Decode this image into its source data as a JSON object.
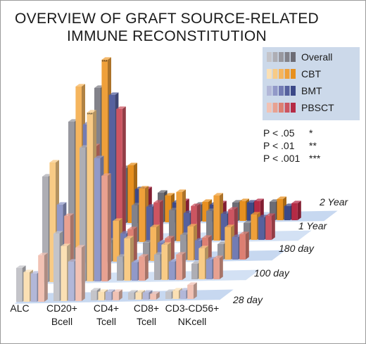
{
  "title_line1": "OVERVIEW OF GRAFT SOURCE-RELATED",
  "title_line2": "IMMUNE RECONSTITUTION",
  "legend": {
    "items": [
      {
        "label": "Overall",
        "colors": [
          "#c4c4c9",
          "#aeaeb4",
          "#98989f",
          "#82828a",
          "#6c6c75"
        ]
      },
      {
        "label": "CBT",
        "colors": [
          "#fbe0b4",
          "#f8cb86",
          "#f5b55e",
          "#efa03a",
          "#e7901f"
        ]
      },
      {
        "label": "BMT",
        "colors": [
          "#b2b7d8",
          "#9199c8",
          "#737cb4",
          "#56619e",
          "#3c4988"
        ]
      },
      {
        "label": "PBSCT",
        "colors": [
          "#f2c2b4",
          "#e8a191",
          "#dd7f72",
          "#cc5561",
          "#b52a45"
        ]
      }
    ]
  },
  "pvalues": [
    {
      "label": "P < .05",
      "stars": "*"
    },
    {
      "label": "P < .01",
      "stars": "**"
    },
    {
      "label": "P < .001",
      "stars": "***"
    }
  ],
  "chart_data": {
    "type": "bar",
    "title": "OVERVIEW OF GRAFT SOURCE-RELATED IMMUNE RECONSTITUTION",
    "categories": [
      "ALC",
      "CD20+ Bcell",
      "CD4+ Tcell",
      "CD8+ Tcell",
      "CD3-CD56+ NKcell"
    ],
    "category_lines": [
      [
        "ALC"
      ],
      [
        "CD20+",
        "Bcell"
      ],
      [
        "CD4+",
        "Tcell"
      ],
      [
        "CD8+",
        "Tcell"
      ],
      [
        "CD3-CD56+",
        "NKcell"
      ]
    ],
    "timepoints": [
      "28 day",
      "100 day",
      "180 day",
      "1 Year",
      "2 Year"
    ],
    "series_names": [
      "Overall",
      "CBT",
      "BMT",
      "PBSCT"
    ],
    "units": "relative bar height (no value axis shown)",
    "values": [
      [
        [
          48,
          42,
          40,
          66
        ],
        [
          96,
          78,
          56,
          76
        ],
        [
          14,
          12,
          12,
          12
        ],
        [
          10,
          10,
          10,
          8
        ],
        [
          10,
          12,
          12,
          20
        ]
      ],
      [
        [
          150,
          170,
          110,
          94
        ],
        [
          190,
          240,
          175,
          150
        ],
        [
          34,
          60,
          26,
          34
        ],
        [
          36,
          50,
          26,
          36
        ],
        [
          22,
          44,
          28,
          30
        ]
      ],
      [
        [
          200,
          250,
          196,
          165
        ],
        [
          30,
          58,
          40,
          46
        ],
        [
          26,
          48,
          26,
          32
        ],
        [
          36,
          48,
          28,
          32
        ],
        [
          22,
          46,
          32,
          36
        ]
      ],
      [
        [
          220,
          260,
          210,
          190
        ],
        [
          52,
          76,
          50,
          56
        ],
        [
          44,
          70,
          40,
          50
        ],
        [
          42,
          64,
          38,
          44
        ],
        [
          24,
          36,
          32,
          34
        ]
      ],
      [
        [
          78,
          82,
          48,
          48
        ],
        [
          42,
          38,
          28,
          30
        ],
        [
          24,
          28,
          24,
          26
        ],
        [
          26,
          28,
          26,
          28
        ],
        [
          26,
          30,
          20,
          24
        ]
      ]
    ],
    "significance": [
      [
        "",
        "",
        "",
        "",
        ""
      ],
      [
        "",
        "***",
        "",
        "",
        ""
      ],
      [
        "",
        "",
        "",
        "",
        ""
      ],
      [
        "***",
        "",
        "",
        "",
        ""
      ],
      [
        "",
        "",
        "",
        "",
        ""
      ]
    ],
    "legend_position": "top-right",
    "grid": false
  }
}
